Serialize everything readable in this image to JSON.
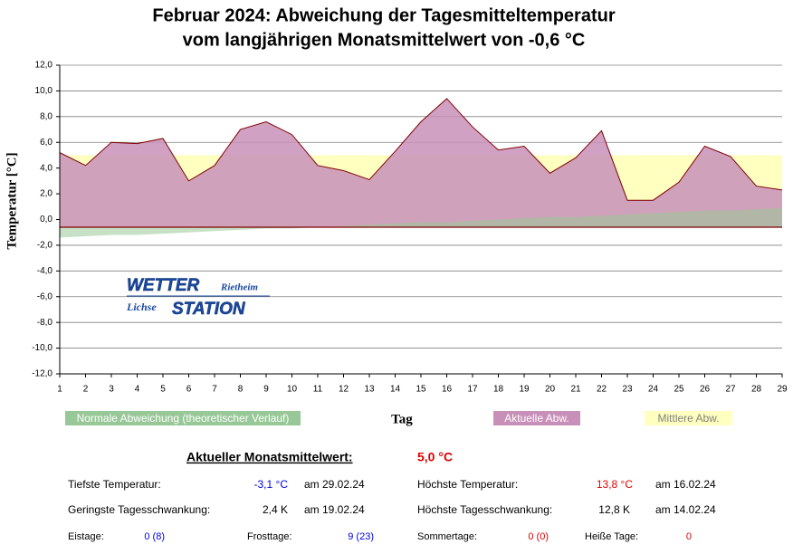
{
  "chart_data": {
    "type": "area",
    "title": [
      "Februar 2024: Abweichung der Tagesmitteltemperatur",
      "vom langjährigen Monatsmittelwert von -0,6 °C"
    ],
    "long_term_mean": -0.6,
    "y_label": "Temperatur [°C]",
    "x_label": "Tag",
    "categories": [
      "1",
      "2",
      "3",
      "4",
      "5",
      "6",
      "7",
      "8",
      "9",
      "10",
      "11",
      "12",
      "13",
      "14",
      "15",
      "16",
      "17",
      "18",
      "19",
      "20",
      "21",
      "22",
      "23",
      "24",
      "25",
      "26",
      "27",
      "28",
      "29"
    ],
    "series": [
      {
        "name": "Mittlere Abw.",
        "color": "#ffffc0",
        "values": [
          5.0,
          5.0,
          5.0,
          5.0,
          5.0,
          5.0,
          5.0,
          5.0,
          5.0,
          5.0,
          5.0,
          5.0,
          5.0,
          5.0,
          5.0,
          5.0,
          5.0,
          5.0,
          5.0,
          5.0,
          5.0,
          5.0,
          5.0,
          5.0,
          5.0,
          5.0,
          5.0,
          5.0,
          5.0
        ]
      },
      {
        "name": "Aktuelle Abw.",
        "color": "#c890b8",
        "values": [
          5.2,
          4.2,
          6.0,
          5.9,
          6.3,
          3.0,
          4.2,
          7.0,
          7.6,
          6.6,
          4.2,
          3.8,
          3.1,
          5.3,
          7.6,
          9.4,
          7.2,
          5.4,
          5.7,
          3.6,
          4.8,
          6.9,
          1.5,
          1.5,
          2.9,
          5.7,
          4.9,
          2.6,
          2.3
        ]
      },
      {
        "name": "Normale Abweichung (theoretischer Verlauf)",
        "color": "#98c898",
        "values": [
          -1.4,
          -1.3,
          -1.2,
          -1.2,
          -1.1,
          -1.0,
          -0.9,
          -0.8,
          -0.7,
          -0.7,
          -0.6,
          -0.5,
          -0.4,
          -0.3,
          -0.2,
          -0.2,
          -0.1,
          0.0,
          0.1,
          0.2,
          0.2,
          0.3,
          0.4,
          0.5,
          0.6,
          0.7,
          0.7,
          0.8,
          0.9
        ]
      }
    ],
    "ylim": [
      -12,
      12
    ],
    "yticks": [
      {
        "value": -12,
        "label": "-12,0"
      },
      {
        "value": -10,
        "label": "-10,0"
      },
      {
        "value": -8,
        "label": "-8,0"
      },
      {
        "value": -6,
        "label": "-6,0"
      },
      {
        "value": -4,
        "label": "-4,0"
      },
      {
        "value": -2,
        "label": "-2,0"
      },
      {
        "value": 0,
        "label": "0,0"
      },
      {
        "value": 2,
        "label": "2,0"
      },
      {
        "value": 4,
        "label": "4,0"
      },
      {
        "value": 6,
        "label": "6,0"
      },
      {
        "value": 8,
        "label": "8,0"
      },
      {
        "value": 10,
        "label": "10,0"
      },
      {
        "value": 12,
        "label": "12,0"
      }
    ],
    "grid": true
  },
  "logo": {
    "line1": "WETTER",
    "place1": "Rietheim",
    "place2": "Lichse",
    "line2": "STATION"
  },
  "stats": {
    "title": "Aktueller Monatsmittelwert:",
    "value": "5,0 °C",
    "rows": [
      [
        "Tiefste Temperatur:",
        "-3,1 °C",
        "am 29.02.24",
        "Höchste Temperatur:",
        "13,8 °C",
        "am 16.02.24"
      ],
      [
        "Geringste Tagesschwankung:",
        "2,4 K",
        "am 19.02.24",
        "Höchste Tagesschwankung:",
        "12,8 K",
        "am 14.02.24"
      ],
      [
        "Eistage:",
        "0 (8)",
        "Frosttage:",
        "9 (23)",
        "Sommertage:",
        "0 (0)",
        "Heiße Tage:",
        "0"
      ]
    ]
  }
}
